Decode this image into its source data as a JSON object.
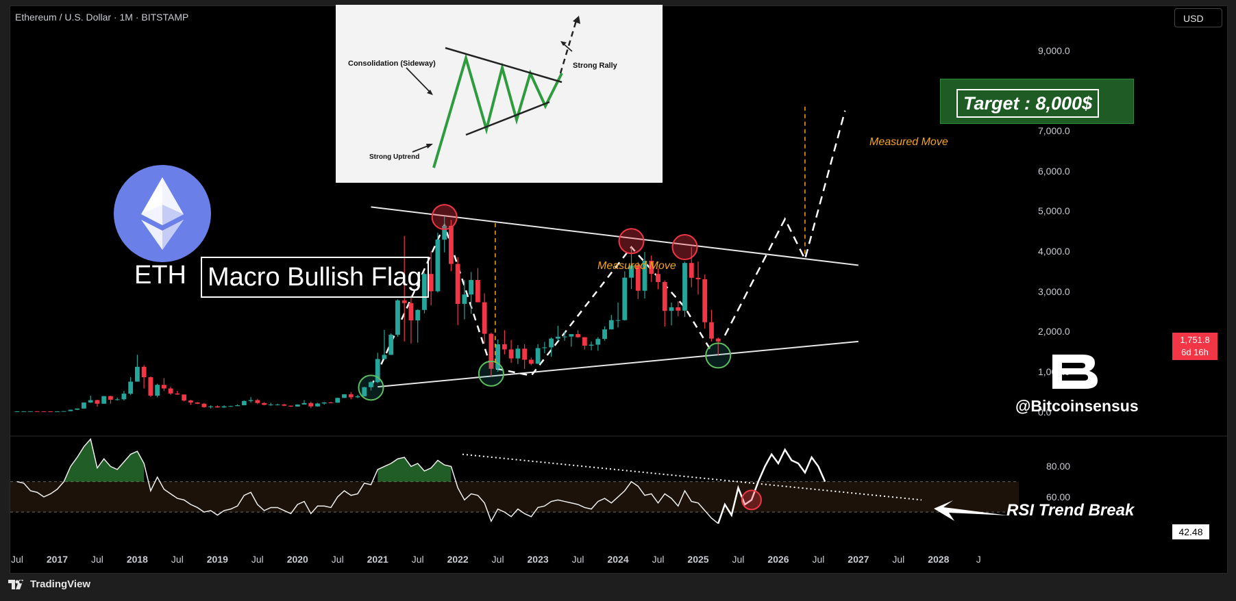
{
  "header": {
    "title": "Ethereum / U.S. Dollar · 1M · BITSTAMP",
    "currency": "USD"
  },
  "price_badge": {
    "price": "1,751.8",
    "countdown": "6d 16h"
  },
  "rsi_badge": "42.48",
  "footer": {
    "brand": "TradingView"
  },
  "inset": {
    "labels": {
      "consolidation": "Consolidation (Sideway)",
      "rally": "Strong Rally",
      "uptrend": "Strong Uptrend"
    }
  },
  "annotations": {
    "eth": "ETH",
    "flag": "Macro Bullish Flag",
    "target": "Target : 8,000$",
    "measured_move": "Measured Move",
    "rsi_break": "RSI Trend Break",
    "handle": "@Bitcoinsensus"
  },
  "colors": {
    "up": "#26a69a",
    "down": "#f23645",
    "background": "#000000",
    "rsi_band": "#1c1209",
    "annotation_orange": "#f4a41f",
    "target_green": "#1e5b25"
  },
  "chart_data": [
    {
      "type": "candlestick",
      "title": "Ethereum / U.S. Dollar · 1M · BITSTAMP",
      "yticks": [
        0,
        1000,
        2000,
        3000,
        4000,
        5000,
        6000,
        7000,
        8000,
        9000
      ],
      "ytick_labels": [
        "0.0",
        "1,000.0",
        "2,000.0",
        "3,000.0",
        "4,000.0",
        "5,000.0",
        "6,000.0",
        "7,000.0",
        "8,000.0",
        "9,000.0"
      ],
      "ylim": [
        -400,
        10000
      ],
      "xtick_labels": [
        "Jul",
        "2017",
        "Jul",
        "2018",
        "Jul",
        "2019",
        "Jul",
        "2020",
        "Jul",
        "2021",
        "Jul",
        "2022",
        "Jul",
        "2023",
        "Jul",
        "2024",
        "Jul",
        "2025",
        "Jul",
        "2026",
        "Jul",
        "2027",
        "Jul",
        "2028",
        "J"
      ],
      "xlim": [
        "2016-07",
        "2028-12"
      ],
      "last_price": 1751.8,
      "upper_trendline": [
        [
          "2020-12",
          5100
        ],
        [
          "2027-01",
          3650
        ]
      ],
      "lower_trendline": [
        [
          "2021-01",
          620
        ],
        [
          "2027-01",
          1750
        ]
      ],
      "projection": [
        [
          "2025-05",
          1900
        ],
        [
          "2026-02",
          4800
        ],
        [
          "2026-05",
          3800
        ],
        [
          "2026-11",
          7500
        ]
      ],
      "target": 8000,
      "candles": [
        [
          "2016-07",
          8,
          12,
          6,
          11
        ],
        [
          "2016-08",
          11,
          13,
          10,
          12
        ],
        [
          "2016-09",
          12,
          14,
          11,
          13
        ],
        [
          "2016-10",
          13,
          14,
          10,
          11
        ],
        [
          "2016-11",
          11,
          11,
          8,
          9
        ],
        [
          "2016-12",
          9,
          10,
          7,
          8
        ],
        [
          "2017-01",
          8,
          12,
          8,
          10
        ],
        [
          "2017-02",
          10,
          16,
          10,
          16
        ],
        [
          "2017-03",
          16,
          55,
          16,
          50
        ],
        [
          "2017-04",
          50,
          80,
          45,
          80
        ],
        [
          "2017-05",
          80,
          230,
          80,
          230
        ],
        [
          "2017-06",
          230,
          400,
          220,
          290
        ],
        [
          "2017-07",
          290,
          300,
          130,
          200
        ],
        [
          "2017-08",
          200,
          390,
          200,
          390
        ],
        [
          "2017-09",
          390,
          400,
          200,
          300
        ],
        [
          "2017-10",
          300,
          350,
          280,
          310
        ],
        [
          "2017-11",
          310,
          520,
          280,
          450
        ],
        [
          "2017-12",
          450,
          860,
          420,
          750
        ],
        [
          "2018-01",
          750,
          1420,
          760,
          1120
        ],
        [
          "2018-02",
          1120,
          1160,
          580,
          860
        ],
        [
          "2018-03",
          860,
          880,
          370,
          400
        ],
        [
          "2018-04",
          400,
          700,
          360,
          670
        ],
        [
          "2018-05",
          670,
          840,
          520,
          580
        ],
        [
          "2018-06",
          580,
          620,
          420,
          455
        ],
        [
          "2018-07",
          455,
          520,
          420,
          430
        ],
        [
          "2018-08",
          430,
          430,
          260,
          280
        ],
        [
          "2018-09",
          280,
          300,
          170,
          230
        ],
        [
          "2018-10",
          230,
          240,
          190,
          200
        ],
        [
          "2018-11",
          200,
          220,
          100,
          115
        ],
        [
          "2018-12",
          115,
          160,
          80,
          135
        ],
        [
          "2019-01",
          135,
          160,
          100,
          107
        ],
        [
          "2019-02",
          107,
          160,
          100,
          135
        ],
        [
          "2019-03",
          135,
          150,
          125,
          141
        ],
        [
          "2019-04",
          141,
          185,
          140,
          162
        ],
        [
          "2019-05",
          162,
          280,
          160,
          268
        ],
        [
          "2019-06",
          268,
          365,
          230,
          290
        ],
        [
          "2019-07",
          290,
          320,
          190,
          218
        ],
        [
          "2019-08",
          218,
          240,
          160,
          172
        ],
        [
          "2019-09",
          172,
          225,
          150,
          180
        ],
        [
          "2019-10",
          180,
          200,
          155,
          182
        ],
        [
          "2019-11",
          182,
          195,
          140,
          151
        ],
        [
          "2019-12",
          151,
          155,
          120,
          130
        ],
        [
          "2020-01",
          130,
          185,
          130,
          180
        ],
        [
          "2020-02",
          180,
          290,
          180,
          218
        ],
        [
          "2020-03",
          218,
          250,
          90,
          133
        ],
        [
          "2020-04",
          133,
          225,
          130,
          206
        ],
        [
          "2020-05",
          206,
          240,
          180,
          231
        ],
        [
          "2020-06",
          231,
          250,
          215,
          225
        ],
        [
          "2020-07",
          225,
          350,
          225,
          345
        ],
        [
          "2020-08",
          345,
          440,
          340,
          435
        ],
        [
          "2020-09",
          435,
          490,
          310,
          360
        ],
        [
          "2020-10",
          360,
          420,
          340,
          386
        ],
        [
          "2020-11",
          386,
          620,
          380,
          612
        ],
        [
          "2020-12",
          612,
          760,
          530,
          737
        ],
        [
          "2021-01",
          737,
          1470,
          715,
          1314
        ],
        [
          "2021-02",
          1314,
          2040,
          1290,
          1417
        ],
        [
          "2021-03",
          1417,
          1950,
          1420,
          1918
        ],
        [
          "2021-04",
          1918,
          2800,
          1870,
          2773
        ],
        [
          "2021-05",
          2773,
          4380,
          1750,
          2706
        ],
        [
          "2021-06",
          2706,
          2900,
          1700,
          2275
        ],
        [
          "2021-07",
          2275,
          2550,
          1720,
          2536
        ],
        [
          "2021-08",
          2536,
          3470,
          2450,
          3433
        ],
        [
          "2021-09",
          3433,
          4000,
          2650,
          3001
        ],
        [
          "2021-10",
          3001,
          4460,
          2970,
          4288
        ],
        [
          "2021-11",
          4288,
          4870,
          3970,
          4631
        ],
        [
          "2021-12",
          4631,
          4780,
          3500,
          3682
        ],
        [
          "2022-01",
          3682,
          3850,
          2160,
          2687
        ],
        [
          "2022-02",
          2687,
          3280,
          2300,
          2920
        ],
        [
          "2022-03",
          2920,
          3480,
          2440,
          3282
        ],
        [
          "2022-04",
          3282,
          3580,
          2780,
          2727
        ],
        [
          "2022-05",
          2727,
          2950,
          1700,
          1942
        ],
        [
          "2022-06",
          1942,
          1970,
          880,
          1070
        ],
        [
          "2022-07",
          1070,
          1800,
          1000,
          1680
        ],
        [
          "2022-08",
          1680,
          2030,
          1430,
          1553
        ],
        [
          "2022-09",
          1553,
          1790,
          1220,
          1328
        ],
        [
          "2022-10",
          1328,
          1660,
          1190,
          1572
        ],
        [
          "2022-11",
          1572,
          1680,
          1070,
          1296
        ],
        [
          "2022-12",
          1296,
          1350,
          1160,
          1196
        ],
        [
          "2023-01",
          1196,
          1680,
          1190,
          1585
        ],
        [
          "2023-02",
          1585,
          1740,
          1460,
          1605
        ],
        [
          "2023-03",
          1605,
          1850,
          1370,
          1822
        ],
        [
          "2023-04",
          1822,
          2140,
          1760,
          1869
        ],
        [
          "2023-05",
          1869,
          2000,
          1770,
          1874
        ],
        [
          "2023-06",
          1874,
          1930,
          1620,
          1934
        ],
        [
          "2023-07",
          1934,
          2030,
          1840,
          1857
        ],
        [
          "2023-08",
          1857,
          1860,
          1550,
          1645
        ],
        [
          "2023-09",
          1645,
          1750,
          1530,
          1671
        ],
        [
          "2023-10",
          1671,
          1860,
          1520,
          1815
        ],
        [
          "2023-11",
          1815,
          2130,
          1770,
          2052
        ],
        [
          "2023-12",
          2052,
          2410,
          2050,
          2282
        ],
        [
          "2024-01",
          2282,
          2720,
          2100,
          2283
        ],
        [
          "2024-02",
          2283,
          3500,
          2270,
          3340
        ],
        [
          "2024-03",
          3340,
          4090,
          3060,
          3648
        ],
        [
          "2024-04",
          3648,
          3730,
          2810,
          3014
        ],
        [
          "2024-05",
          3014,
          3980,
          2820,
          3760
        ],
        [
          "2024-06",
          3760,
          3890,
          3230,
          3433
        ],
        [
          "2024-07",
          3433,
          3570,
          3050,
          3232
        ],
        [
          "2024-08",
          3232,
          3270,
          2120,
          2513
        ],
        [
          "2024-09",
          2513,
          2720,
          2150,
          2602
        ],
        [
          "2024-10",
          2602,
          2750,
          2380,
          2518
        ],
        [
          "2024-11",
          2518,
          3740,
          2360,
          3706
        ],
        [
          "2024-12",
          3706,
          4100,
          3100,
          3337
        ],
        [
          "2025-01",
          3337,
          3740,
          2920,
          3300
        ],
        [
          "2025-02",
          3300,
          3420,
          2070,
          2230
        ],
        [
          "2025-03",
          2230,
          2540,
          1750,
          1822
        ],
        [
          "2025-04",
          1822,
          1850,
          1400,
          1751
        ]
      ]
    },
    {
      "type": "line",
      "title": "RSI",
      "yticks": [
        60,
        80
      ],
      "ytick_labels": [
        "60.00",
        "80.00"
      ],
      "band": [
        50,
        70
      ],
      "last_value": 42.48,
      "values": [
        70,
        69,
        64,
        63,
        60,
        62,
        65,
        70,
        80,
        86,
        93,
        98,
        79,
        85,
        80,
        78,
        83,
        88,
        90,
        82,
        64,
        73,
        65,
        62,
        59,
        58,
        55,
        53,
        50,
        51,
        48,
        51,
        52,
        54,
        61,
        63,
        55,
        51,
        53,
        53,
        51,
        49,
        55,
        57,
        49,
        54,
        54,
        53,
        60,
        64,
        61,
        62,
        69,
        68,
        78,
        80,
        82,
        85,
        86,
        80,
        82,
        77,
        79,
        84,
        81,
        80,
        66,
        58,
        62,
        61,
        56,
        44,
        52,
        50,
        47,
        52,
        49,
        47,
        53,
        54,
        57,
        58,
        57,
        56,
        55,
        53,
        52,
        57,
        59,
        56,
        60,
        64,
        70,
        67,
        61,
        62,
        56,
        62,
        59,
        54,
        64,
        57,
        56,
        51,
        46,
        42.48
      ],
      "projection": [
        42.48,
        55,
        48,
        66,
        55,
        58,
        70,
        80,
        88,
        82,
        91,
        84,
        82,
        76,
        86,
        80,
        70
      ],
      "trendline": [
        [
          1,
          88
        ],
        [
          0.84,
          57
        ]
      ]
    }
  ]
}
